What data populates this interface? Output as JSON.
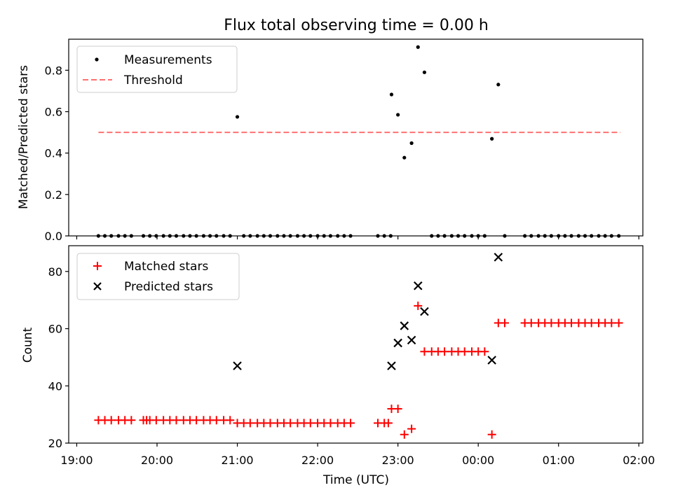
{
  "chart_data": [
    {
      "type": "scatter",
      "title": "Flux total observing time = 0.00 h",
      "ylabel": "Matched/Predicted stars",
      "xlabel": "",
      "x_unit": "hours since 19:00 UTC",
      "xlim": [
        -0.1,
        7.05
      ],
      "ylim": [
        0,
        0.95
      ],
      "yticks": [
        0.0,
        0.2,
        0.4,
        0.6,
        0.8
      ],
      "ytick_labels": [
        "0.0",
        "0.2",
        "0.4",
        "0.6",
        "0.8"
      ],
      "xticks": [
        0,
        1,
        2,
        3,
        4,
        5,
        6,
        7
      ],
      "legend_position": "top-left",
      "series": [
        {
          "name": "Measurements",
          "style": "dot",
          "color": "#000000",
          "points": [
            [
              0.27,
              0
            ],
            [
              0.35,
              0
            ],
            [
              0.43,
              0
            ],
            [
              0.52,
              0
            ],
            [
              0.6,
              0
            ],
            [
              0.68,
              0
            ],
            [
              0.83,
              0
            ],
            [
              0.91,
              0
            ],
            [
              0.99,
              0
            ],
            [
              1.08,
              0
            ],
            [
              1.16,
              0
            ],
            [
              1.24,
              0
            ],
            [
              1.33,
              0
            ],
            [
              1.41,
              0
            ],
            [
              1.49,
              0
            ],
            [
              1.58,
              0
            ],
            [
              1.66,
              0
            ],
            [
              1.74,
              0
            ],
            [
              1.83,
              0
            ],
            [
              1.91,
              0
            ],
            [
              2.0,
              0.575
            ],
            [
              2.08,
              0
            ],
            [
              2.16,
              0
            ],
            [
              2.25,
              0
            ],
            [
              2.33,
              0
            ],
            [
              2.41,
              0
            ],
            [
              2.5,
              0
            ],
            [
              2.58,
              0
            ],
            [
              2.66,
              0
            ],
            [
              2.75,
              0
            ],
            [
              2.83,
              0
            ],
            [
              2.91,
              0
            ],
            [
              3.0,
              0
            ],
            [
              3.08,
              0
            ],
            [
              3.16,
              0
            ],
            [
              3.25,
              0
            ],
            [
              3.33,
              0
            ],
            [
              3.41,
              0
            ],
            [
              3.75,
              0
            ],
            [
              3.83,
              0
            ],
            [
              3.91,
              0
            ],
            [
              3.92,
              0.683
            ],
            [
              4.0,
              0.585
            ],
            [
              4.08,
              0.378
            ],
            [
              4.17,
              0.448
            ],
            [
              4.25,
              0.912
            ],
            [
              4.33,
              0.79
            ],
            [
              4.42,
              0
            ],
            [
              4.5,
              0
            ],
            [
              4.58,
              0
            ],
            [
              4.67,
              0
            ],
            [
              4.75,
              0
            ],
            [
              4.83,
              0
            ],
            [
              4.92,
              0
            ],
            [
              5.0,
              0
            ],
            [
              5.08,
              0
            ],
            [
              5.17,
              0.469
            ],
            [
              5.25,
              0.731
            ],
            [
              5.33,
              0
            ],
            [
              5.58,
              0
            ],
            [
              5.66,
              0
            ],
            [
              5.75,
              0
            ],
            [
              5.83,
              0
            ],
            [
              5.91,
              0
            ],
            [
              6.0,
              0
            ],
            [
              6.08,
              0
            ],
            [
              6.16,
              0
            ],
            [
              6.25,
              0
            ],
            [
              6.33,
              0
            ],
            [
              6.41,
              0
            ],
            [
              6.5,
              0
            ],
            [
              6.58,
              0
            ],
            [
              6.66,
              0
            ],
            [
              6.75,
              0
            ]
          ]
        },
        {
          "name": "Threshold",
          "style": "dashed-line",
          "color": "#ff7070",
          "x": [
            0.27,
            6.77
          ],
          "y": [
            0.5,
            0.5
          ]
        }
      ]
    },
    {
      "type": "scatter",
      "title": "",
      "ylabel": "Count",
      "xlabel": "Time (UTC)",
      "x_unit": "hours since 19:00 UTC",
      "xlim": [
        -0.1,
        7.05
      ],
      "ylim": [
        20,
        89
      ],
      "yticks": [
        20,
        40,
        60,
        80
      ],
      "ytick_labels": [
        "20",
        "40",
        "60",
        "80"
      ],
      "xticks": [
        0,
        1,
        2,
        3,
        4,
        5,
        6,
        7
      ],
      "xtick_labels": [
        "19:00",
        "20:00",
        "21:00",
        "22:00",
        "23:00",
        "00:00",
        "01:00",
        "02:00"
      ],
      "legend_position": "top-left",
      "series": [
        {
          "name": "Matched stars",
          "style": "plus",
          "color": "#ff0000",
          "points": [
            [
              0.27,
              28
            ],
            [
              0.35,
              28
            ],
            [
              0.43,
              28
            ],
            [
              0.52,
              28
            ],
            [
              0.6,
              28
            ],
            [
              0.68,
              28
            ],
            [
              0.83,
              28
            ],
            [
              0.87,
              28
            ],
            [
              0.91,
              28
            ],
            [
              0.99,
              28
            ],
            [
              1.08,
              28
            ],
            [
              1.16,
              28
            ],
            [
              1.24,
              28
            ],
            [
              1.33,
              28
            ],
            [
              1.41,
              28
            ],
            [
              1.49,
              28
            ],
            [
              1.58,
              28
            ],
            [
              1.66,
              28
            ],
            [
              1.74,
              28
            ],
            [
              1.83,
              28
            ],
            [
              1.91,
              28
            ],
            [
              2.0,
              27
            ],
            [
              2.08,
              27
            ],
            [
              2.16,
              27
            ],
            [
              2.25,
              27
            ],
            [
              2.33,
              27
            ],
            [
              2.41,
              27
            ],
            [
              2.5,
              27
            ],
            [
              2.58,
              27
            ],
            [
              2.66,
              27
            ],
            [
              2.75,
              27
            ],
            [
              2.83,
              27
            ],
            [
              2.91,
              27
            ],
            [
              3.0,
              27
            ],
            [
              3.08,
              27
            ],
            [
              3.16,
              27
            ],
            [
              3.25,
              27
            ],
            [
              3.33,
              27
            ],
            [
              3.41,
              27
            ],
            [
              3.75,
              27
            ],
            [
              3.83,
              27
            ],
            [
              3.88,
              27
            ],
            [
              3.92,
              32
            ],
            [
              4.0,
              32
            ],
            [
              4.08,
              23
            ],
            [
              4.17,
              25
            ],
            [
              4.25,
              68
            ],
            [
              4.33,
              52
            ],
            [
              4.42,
              52
            ],
            [
              4.5,
              52
            ],
            [
              4.58,
              52
            ],
            [
              4.67,
              52
            ],
            [
              4.75,
              52
            ],
            [
              4.83,
              52
            ],
            [
              4.92,
              52
            ],
            [
              5.0,
              52
            ],
            [
              5.08,
              52
            ],
            [
              5.17,
              23
            ],
            [
              5.25,
              62
            ],
            [
              5.33,
              62
            ],
            [
              5.58,
              62
            ],
            [
              5.66,
              62
            ],
            [
              5.75,
              62
            ],
            [
              5.83,
              62
            ],
            [
              5.91,
              62
            ],
            [
              6.0,
              62
            ],
            [
              6.08,
              62
            ],
            [
              6.16,
              62
            ],
            [
              6.25,
              62
            ],
            [
              6.33,
              62
            ],
            [
              6.41,
              62
            ],
            [
              6.5,
              62
            ],
            [
              6.58,
              62
            ],
            [
              6.66,
              62
            ],
            [
              6.75,
              62
            ]
          ]
        },
        {
          "name": "Predicted stars",
          "style": "x",
          "color": "#000000",
          "points": [
            [
              2.0,
              47
            ],
            [
              3.92,
              47
            ],
            [
              4.0,
              55
            ],
            [
              4.08,
              61
            ],
            [
              4.17,
              56
            ],
            [
              4.25,
              75
            ],
            [
              4.33,
              66
            ],
            [
              5.17,
              49
            ],
            [
              5.25,
              85
            ]
          ]
        }
      ]
    }
  ]
}
